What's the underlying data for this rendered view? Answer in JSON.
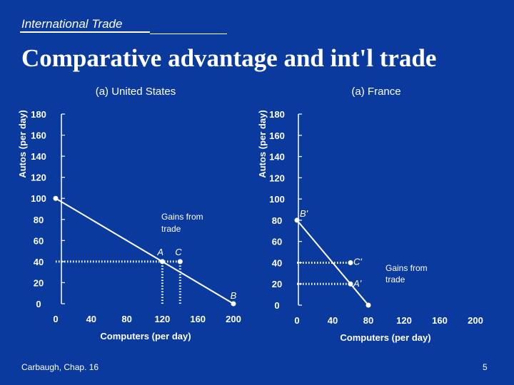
{
  "header": {
    "section": "International Trade"
  },
  "title": "Comparative advantage and int'l trade",
  "footer": {
    "source": "Carbaugh, Chap. 16",
    "page": "5"
  },
  "chart_data": [
    {
      "type": "line",
      "title": "(a) United States",
      "xlabel": "Computers (per day)",
      "ylabel": "Autos (per day)",
      "x_ticks": [
        0,
        40,
        80,
        120,
        160,
        200
      ],
      "y_ticks": [
        0,
        20,
        40,
        60,
        80,
        100,
        120,
        140,
        160,
        180
      ],
      "xlim": [
        0,
        200
      ],
      "ylim": [
        0,
        180
      ],
      "grid": false,
      "series": [
        {
          "x": [
            0,
            200
          ],
          "y": [
            100,
            0
          ]
        }
      ],
      "points": [
        {
          "label": "A",
          "x": 120,
          "y": 40
        },
        {
          "label": "C",
          "x": 140,
          "y": 40
        },
        {
          "label": "B",
          "x": 200,
          "y": 0
        },
        {
          "label": "",
          "x": 0,
          "y": 100
        }
      ],
      "guides": [
        {
          "x1": 0,
          "y1": 40,
          "x2": 140,
          "y2": 40
        },
        {
          "x1": 120,
          "y1": 0,
          "x2": 120,
          "y2": 40
        },
        {
          "x1": 140,
          "y1": 0,
          "x2": 140,
          "y2": 40
        }
      ],
      "annotation": "Gains from trade"
    },
    {
      "type": "line",
      "title": "(a) France",
      "xlabel": "Computers (per day)",
      "ylabel": "Autos (per day)",
      "x_ticks": [
        0,
        40,
        80,
        120,
        160,
        200
      ],
      "y_ticks": [
        0,
        20,
        40,
        60,
        80,
        100,
        120,
        140,
        160,
        180
      ],
      "xlim": [
        0,
        200
      ],
      "ylim": [
        0,
        180
      ],
      "grid": false,
      "series": [
        {
          "x": [
            0,
            80
          ],
          "y": [
            80,
            0
          ]
        }
      ],
      "points": [
        {
          "label": "B'",
          "x": 0,
          "y": 80
        },
        {
          "label": "C'",
          "x": 60,
          "y": 40
        },
        {
          "label": "A'",
          "x": 60,
          "y": 20
        },
        {
          "label": "",
          "x": 80,
          "y": 0
        }
      ],
      "guides": [
        {
          "x1": 0,
          "y1": 40,
          "x2": 60,
          "y2": 40
        },
        {
          "x1": 0,
          "y1": 20,
          "x2": 60,
          "y2": 20
        }
      ],
      "annotation": "Gains from trade"
    }
  ]
}
